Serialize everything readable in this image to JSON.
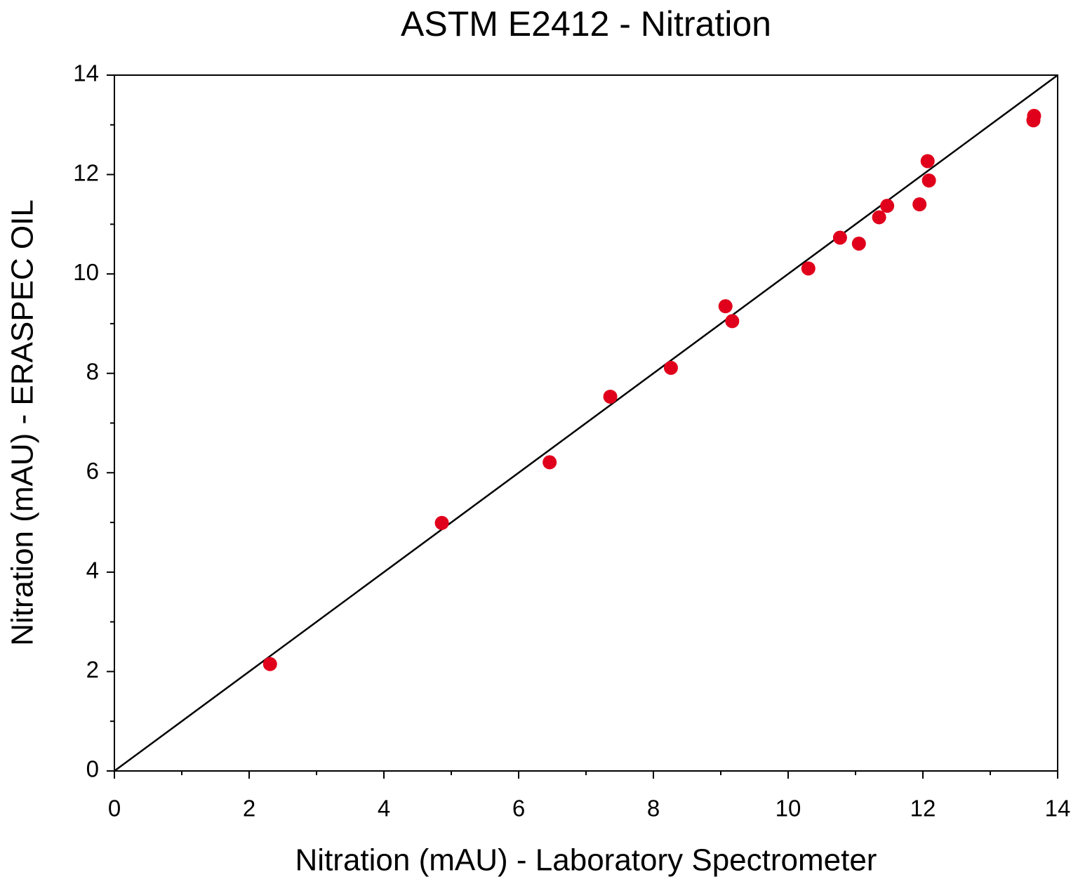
{
  "chart_data": {
    "type": "scatter",
    "title": "ASTM E2412 - Nitration",
    "x_label": "Nitration (mAU) - Laboratory Spectrometer",
    "y_label": "Nitration (mAU) - ERASPEC OIL",
    "x": [
      2.31,
      4.86,
      6.46,
      7.36,
      8.26,
      9.07,
      9.17,
      10.3,
      10.77,
      11.05,
      11.35,
      11.47,
      11.95,
      12.07,
      12.09,
      13.65,
      13.64
    ],
    "values": [
      2.15,
      4.99,
      6.21,
      7.53,
      8.11,
      9.35,
      9.05,
      10.11,
      10.73,
      10.61,
      11.14,
      11.37,
      11.4,
      12.27,
      11.88,
      13.18,
      13.09
    ],
    "color": "#e0001b",
    "reference_line": {
      "x": [
        0,
        14
      ],
      "values": [
        0,
        14
      ],
      "color": "#000000"
    },
    "xlim": [
      0,
      14
    ],
    "ylim": [
      0,
      14
    ],
    "xticks": [
      0,
      2,
      4,
      6,
      8,
      10,
      12,
      14
    ],
    "yticks": [
      0,
      2,
      4,
      6,
      8,
      10,
      12,
      14
    ],
    "minor_xticks": [
      1,
      3,
      5,
      7,
      9,
      11,
      13
    ],
    "minor_yticks": [
      1,
      3,
      5,
      7,
      9,
      11,
      13
    ]
  }
}
